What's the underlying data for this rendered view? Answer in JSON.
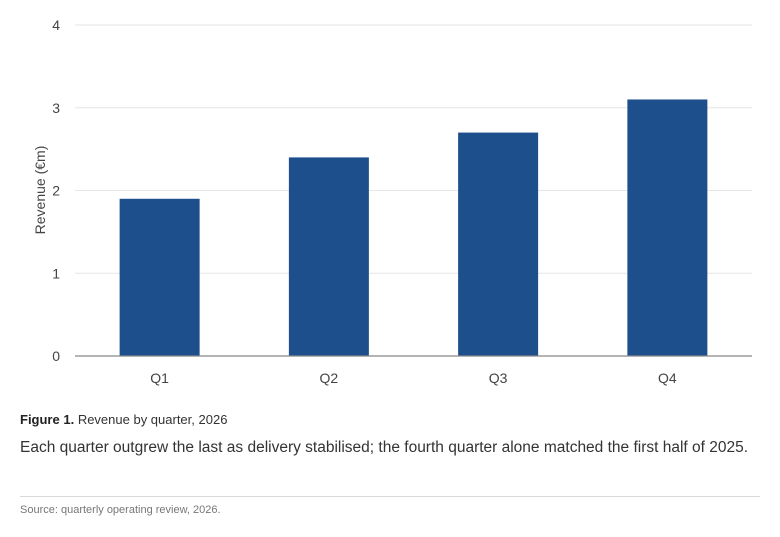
{
  "chart_data": {
    "type": "bar",
    "categories": [
      "Q1",
      "Q2",
      "Q3",
      "Q4"
    ],
    "values": [
      1.9,
      2.4,
      2.7,
      3.1
    ],
    "ylabel": "Revenue (€m)",
    "xlabel": "",
    "ylim": [
      0,
      4
    ],
    "yticks": [
      "0",
      "1",
      "2",
      "3",
      "4"
    ],
    "grid": true,
    "bar_color": "#1c4f8c",
    "grid_color": "#e6e6e6",
    "axis_color": "#888888"
  },
  "caption": {
    "figure_label": "Figure 1.",
    "title": "Revenue by quarter, 2026",
    "description": "Each quarter outgrew the last as delivery stabilised; the fourth quarter alone matched the first half of 2025.",
    "source": "Source: quarterly operating review, 2026."
  }
}
